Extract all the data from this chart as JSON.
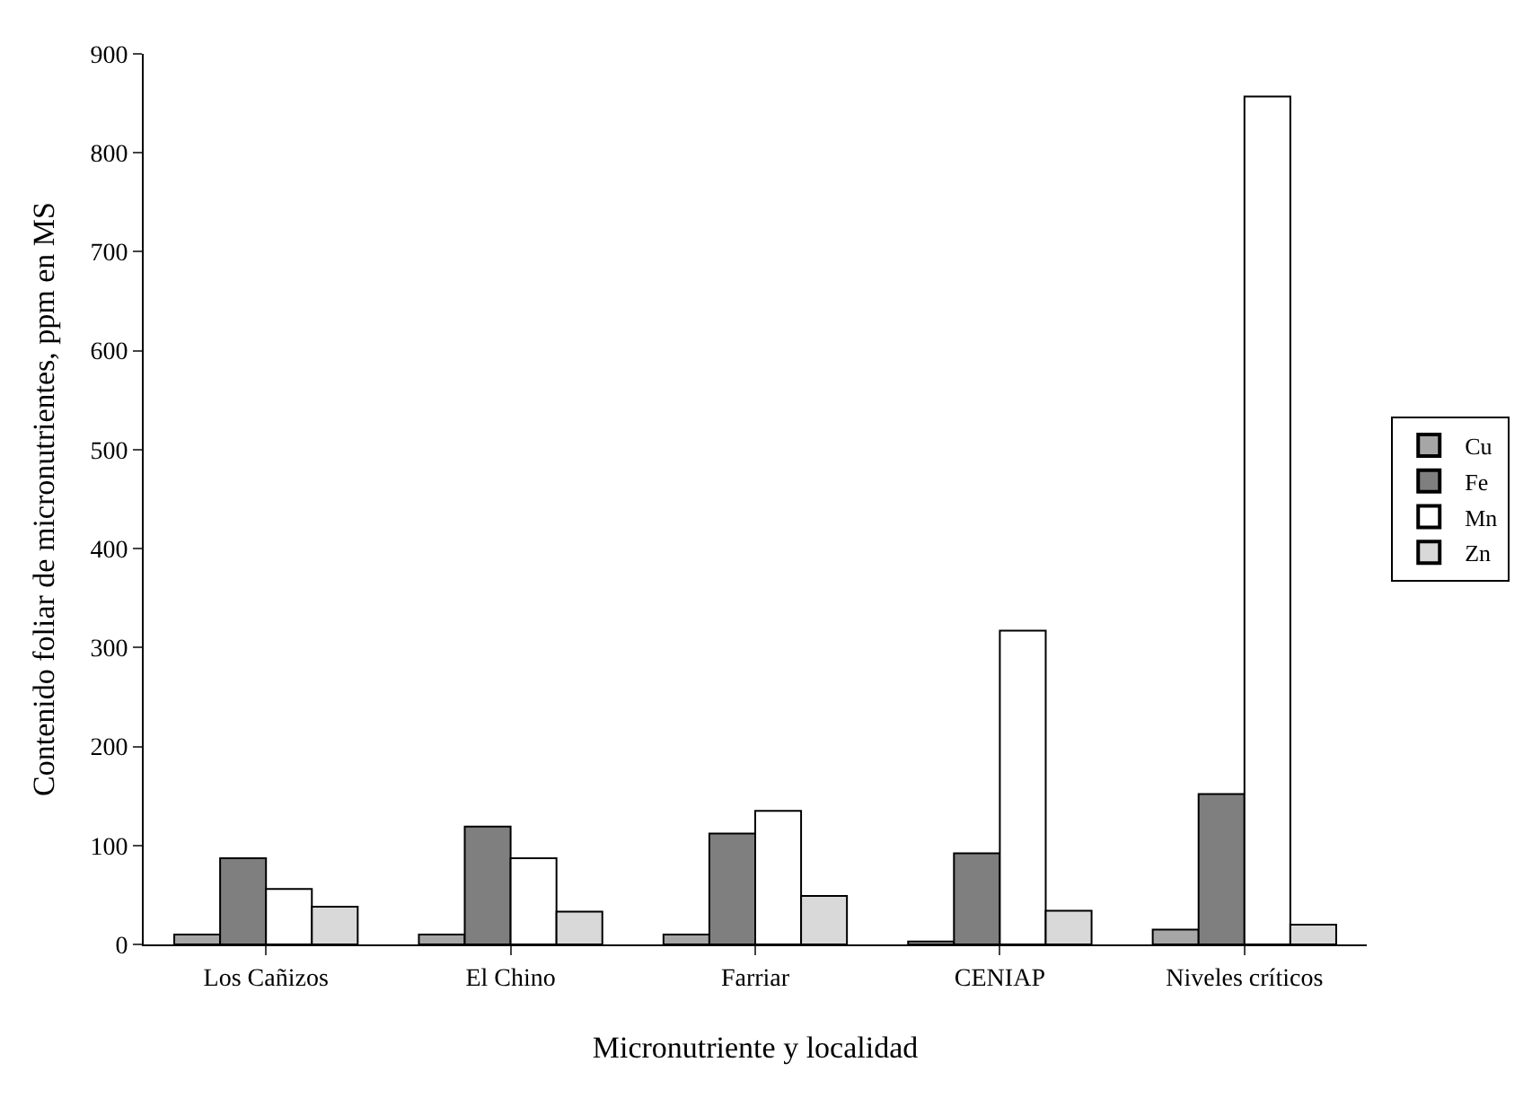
{
  "chart_data": {
    "type": "bar",
    "xlabel": "Micronutriente y localidad",
    "ylabel": "Contenido foliar de micronutrientes, ppm en MS",
    "categories": [
      "Los Cañizos",
      "El Chino",
      "Farriar",
      "CENIAP",
      "Niveles críticos"
    ],
    "series": [
      {
        "name": "Cu",
        "color": "#a6a6a6",
        "values": [
          10,
          10,
          10,
          3,
          15
        ]
      },
      {
        "name": "Fe",
        "color": "#7f7f7f",
        "values": [
          87,
          119,
          112,
          92,
          152
        ]
      },
      {
        "name": "Mn",
        "color": "#ffffff",
        "values": [
          56,
          87,
          135,
          317,
          857
        ]
      },
      {
        "name": "Zn",
        "color": "#d9d9d9",
        "values": [
          38,
          33,
          49,
          34,
          20
        ]
      }
    ],
    "ylim": [
      0,
      900
    ],
    "yticks": [
      0,
      100,
      200,
      300,
      400,
      500,
      600,
      700,
      800,
      900
    ],
    "grid": false,
    "legend": "right"
  }
}
